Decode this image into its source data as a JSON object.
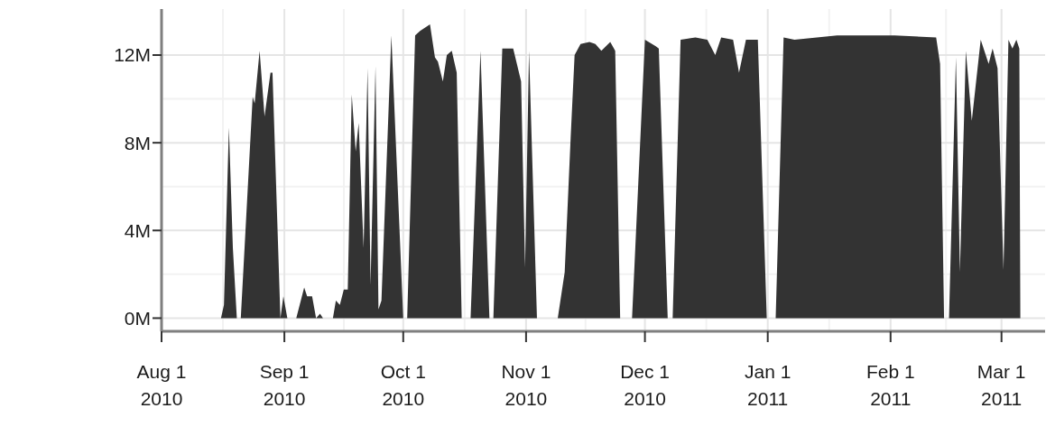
{
  "chart_data": {
    "type": "area",
    "color": "#333333",
    "grid": true,
    "x": [
      "2010-08-16",
      "2010-08-16T18:00",
      "2010-08-18",
      "2010-08-19",
      "2010-08-20",
      "2010-08-21",
      "2010-08-24",
      "2010-08-24T12:00",
      "2010-08-25T18:00",
      "2010-08-27",
      "2010-08-28T12:00",
      "2010-08-29",
      "2010-08-31",
      "2010-08-31T18:00",
      "2010-09-01T18:00",
      "2010-09-04",
      "2010-09-06",
      "2010-09-06T18:00",
      "2010-09-08",
      "2010-09-09",
      "2010-09-10",
      "2010-09-10T18:00",
      "2010-09-13T06:00",
      "2010-09-14",
      "2010-09-15",
      "2010-09-16",
      "2010-09-17",
      "2010-09-18",
      "2010-09-19",
      "2010-09-19T18:00",
      "2010-09-21",
      "2010-09-22",
      "2010-09-22T18:00",
      "2010-09-24",
      "2010-09-24T18:00",
      "2010-09-25T12:00",
      "2010-09-28",
      "2010-10-01",
      "2010-10-02",
      "2010-10-04",
      "2010-10-05T06:00",
      "2010-10-07T18:00",
      "2010-10-09",
      "2010-10-09T18:00",
      "2010-10-11",
      "2010-10-12",
      "2010-10-13T06:00",
      "2010-10-14T12:00",
      "2010-10-15T18:00",
      "2010-10-18",
      "2010-10-20T12:00",
      "2010-10-22T18:00",
      "2010-10-23T18:00",
      "2010-10-26",
      "2010-10-28T18:00",
      "2010-10-30T18:00",
      "2010-10-31T18:00",
      "2010-11-01T18:00",
      "2010-11-03T18:00",
      "2010-11-09",
      "2010-11-10T18:00",
      "2010-11-12T06:00",
      "2010-11-13T06:00",
      "2010-11-14T18:00",
      "2010-11-17",
      "2010-11-18T12:00",
      "2010-11-20",
      "2010-11-22T06:00",
      "2010-11-23T12:00",
      "2010-11-24T18:00",
      "2010-11-27T18:00",
      "2010-12-01",
      "2010-12-03T18:00",
      "2010-12-04T12:00",
      "2010-12-06T18:00",
      "2010-12-08",
      "2010-12-10",
      "2010-12-13T18:00",
      "2010-12-16T18:00",
      "2010-12-18T18:00",
      "2010-12-20T06:00",
      "2010-12-23T06:00",
      "2010-12-24T18:00",
      "2010-12-26T12:00",
      "2010-12-29T12:00",
      "2010-12-31T18:00",
      "2011-01-03",
      "2011-01-05",
      "2011-01-07T18:00",
      "2011-01-18T12:00",
      "2011-02-02",
      "2011-02-12T12:00",
      "2011-02-13T12:00",
      "2011-02-14T12:00",
      "2011-02-15T18:00",
      "2011-02-17T12:00",
      "2011-02-18T12:00",
      "2011-02-20",
      "2011-02-21T12:00",
      "2011-02-23T18:00",
      "2011-02-25T18:00",
      "2011-02-26T18:00",
      "2011-02-28",
      "2011-03-01T12:00",
      "2011-03-02T18:00",
      "2011-03-03T18:00",
      "2011-03-04T18:00",
      "2011-03-05T12:00",
      "2011-03-05T18:00"
    ],
    "values": [
      0,
      0.6,
      8.7,
      3.2,
      0,
      0,
      10.1,
      9.8,
      12.2,
      9.2,
      11.2,
      11.2,
      0,
      1.0,
      0,
      0,
      1.4,
      1.0,
      1.0,
      0,
      0.2,
      0,
      0,
      0.8,
      0.6,
      1.3,
      1.3,
      10.2,
      7.6,
      8.9,
      3.2,
      11.4,
      1.5,
      11.5,
      0.4,
      0.8,
      12.9,
      0,
      0,
      12.9,
      13.1,
      13.4,
      11.9,
      11.7,
      10.8,
      12.0,
      12.2,
      11.2,
      0,
      0,
      12.2,
      0,
      0,
      12.3,
      12.3,
      10.8,
      2.3,
      12.2,
      0,
      0,
      2.1,
      8.2,
      12.0,
      12.5,
      12.6,
      12.5,
      12.2,
      12.6,
      12.2,
      0,
      0,
      12.7,
      12.4,
      12.3,
      0,
      0,
      12.7,
      12.8,
      12.7,
      12.0,
      12.8,
      12.7,
      11.2,
      12.7,
      12.7,
      0,
      0,
      12.8,
      12.7,
      12.9,
      12.9,
      12.8,
      11.6,
      0,
      0,
      11.9,
      2.1,
      12.2,
      9.0,
      12.7,
      11.6,
      12.3,
      11.4,
      2.2,
      12.7,
      12.3,
      12.7,
      12.3,
      0
    ],
    "xlim": [
      "2010-08-01",
      "2011-03-12"
    ],
    "xticks": [
      {
        "value": "2010-08-01",
        "label": "Aug 1\n2010"
      },
      {
        "value": "2010-09-01",
        "label": "Sep 1\n2010"
      },
      {
        "value": "2010-10-01",
        "label": "Oct 1\n2010"
      },
      {
        "value": "2010-11-01",
        "label": "Nov 1\n2010"
      },
      {
        "value": "2010-12-01",
        "label": "Dec 1\n2010"
      },
      {
        "value": "2011-01-01",
        "label": "Jan 1\n2011"
      },
      {
        "value": "2011-02-01",
        "label": "Feb 1\n2011"
      },
      {
        "value": "2011-03-01",
        "label": "Mar 1\n2011"
      }
    ],
    "ylim": [
      -0.6,
      14.1
    ],
    "yticks": [
      {
        "value": 0,
        "label": "0M"
      },
      {
        "value": 4,
        "label": "4M"
      },
      {
        "value": 8,
        "label": "8M"
      },
      {
        "value": 12,
        "label": "12M"
      }
    ]
  }
}
